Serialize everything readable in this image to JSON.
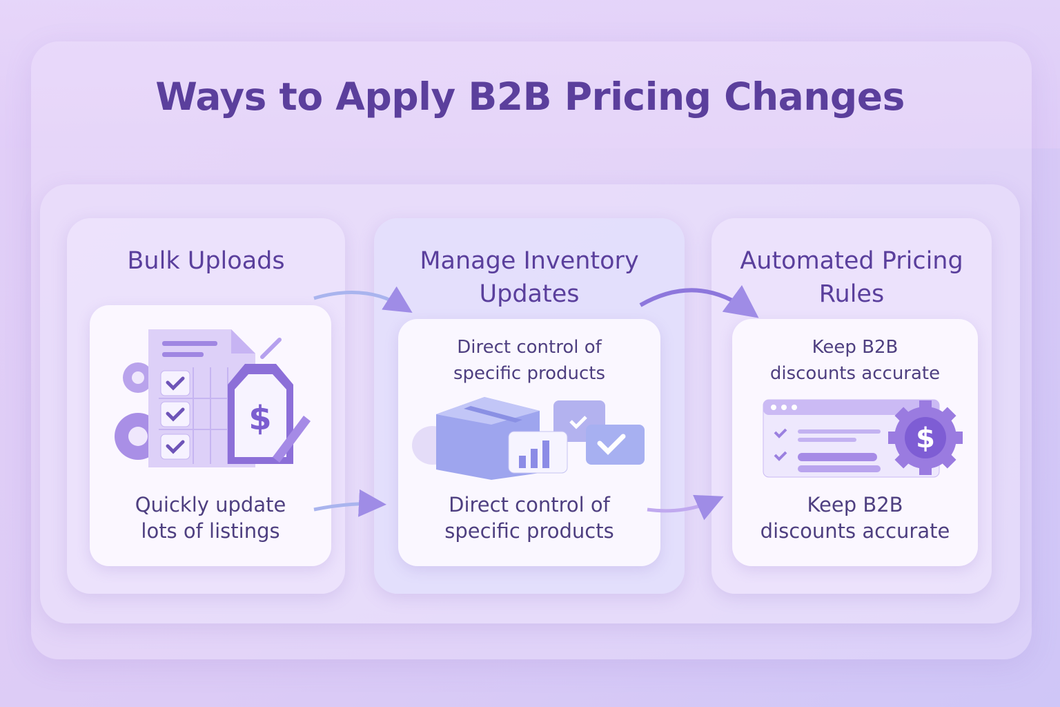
{
  "title": "Ways to Apply B2B Pricing Changes",
  "colors": {
    "accent": "#5b3f9c",
    "icon": "#9a7fe0"
  },
  "cards": [
    {
      "title": "Bulk Uploads",
      "subtitle": "",
      "caption_line1": "Quickly update",
      "caption_line2": "lots of listings",
      "icon": "spreadsheet-price-tag-icon"
    },
    {
      "title_line1": "Manage Inventory",
      "title_line2": "Updates",
      "subtitle_line1": "Direct control of",
      "subtitle_line2": "specific products",
      "caption_line1": "Direct control of",
      "caption_line2": "specific products",
      "icon": "box-chart-check-icon"
    },
    {
      "title_line1": "Automated Pricing",
      "title_line2": "Rules",
      "subtitle_line1": "Keep B2B",
      "subtitle_line2": "discounts accurate",
      "caption_line1": "Keep B2B",
      "caption_line2": "discounts accurate",
      "icon": "browser-gear-dollar-icon"
    }
  ]
}
